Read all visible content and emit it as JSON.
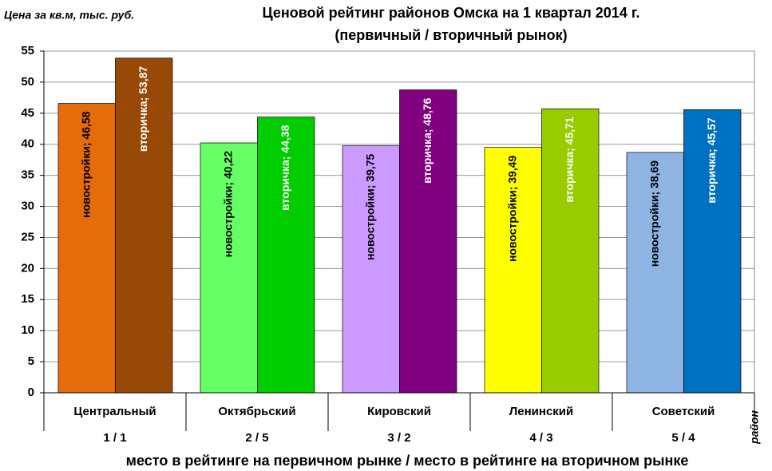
{
  "chart_data": {
    "type": "bar",
    "title": "Ценовой рейтинг районов Омска на 1 квартал 2014 г.",
    "subtitle": "(первичный / вторичный рынок)",
    "y_label": "Цена за кв.м, тыс. руб.",
    "x_label": "место в рейтинге на первичном рынке  /  место в рейтинге на вторичном рынке",
    "category_axis_label": "район",
    "categories": [
      "Центральный",
      "Октябрьский",
      "Кировский",
      "Ленинский",
      "Советский"
    ],
    "ranks": [
      "1 / 1",
      "2 / 5",
      "3 / 2",
      "4 / 3",
      "5 / 4"
    ],
    "series": [
      {
        "colors": [
          "#e46c0a",
          "#66ff66",
          "#cc99ff",
          "#ffff00",
          "#8eb4e3"
        ],
        "label_color": "#000000",
        "values": [
          46.58,
          40.22,
          39.75,
          39.49,
          38.69
        ],
        "value_labels": [
          "новостройки; 46,58",
          "новостройки; 40,22",
          "новостройки; 39,75",
          "новостройки; 39,49",
          "новостройки; 38,69"
        ]
      },
      {
        "colors": [
          "#984807",
          "#00cc00",
          "#800080",
          "#99cc00",
          "#0070c0"
        ],
        "label_color": "#ffffff",
        "values": [
          53.87,
          44.38,
          48.76,
          45.71,
          45.57
        ],
        "value_labels": [
          "вторичка; 53,87",
          "вторичка; 44,38",
          "вторичка; 48,76",
          "вторичка; 45,71",
          "вторичка; 45,57"
        ]
      }
    ],
    "ylim": [
      0,
      55
    ],
    "yticks": [
      0,
      5,
      10,
      15,
      20,
      25,
      30,
      35,
      40,
      45,
      50,
      55
    ],
    "grid": true
  }
}
